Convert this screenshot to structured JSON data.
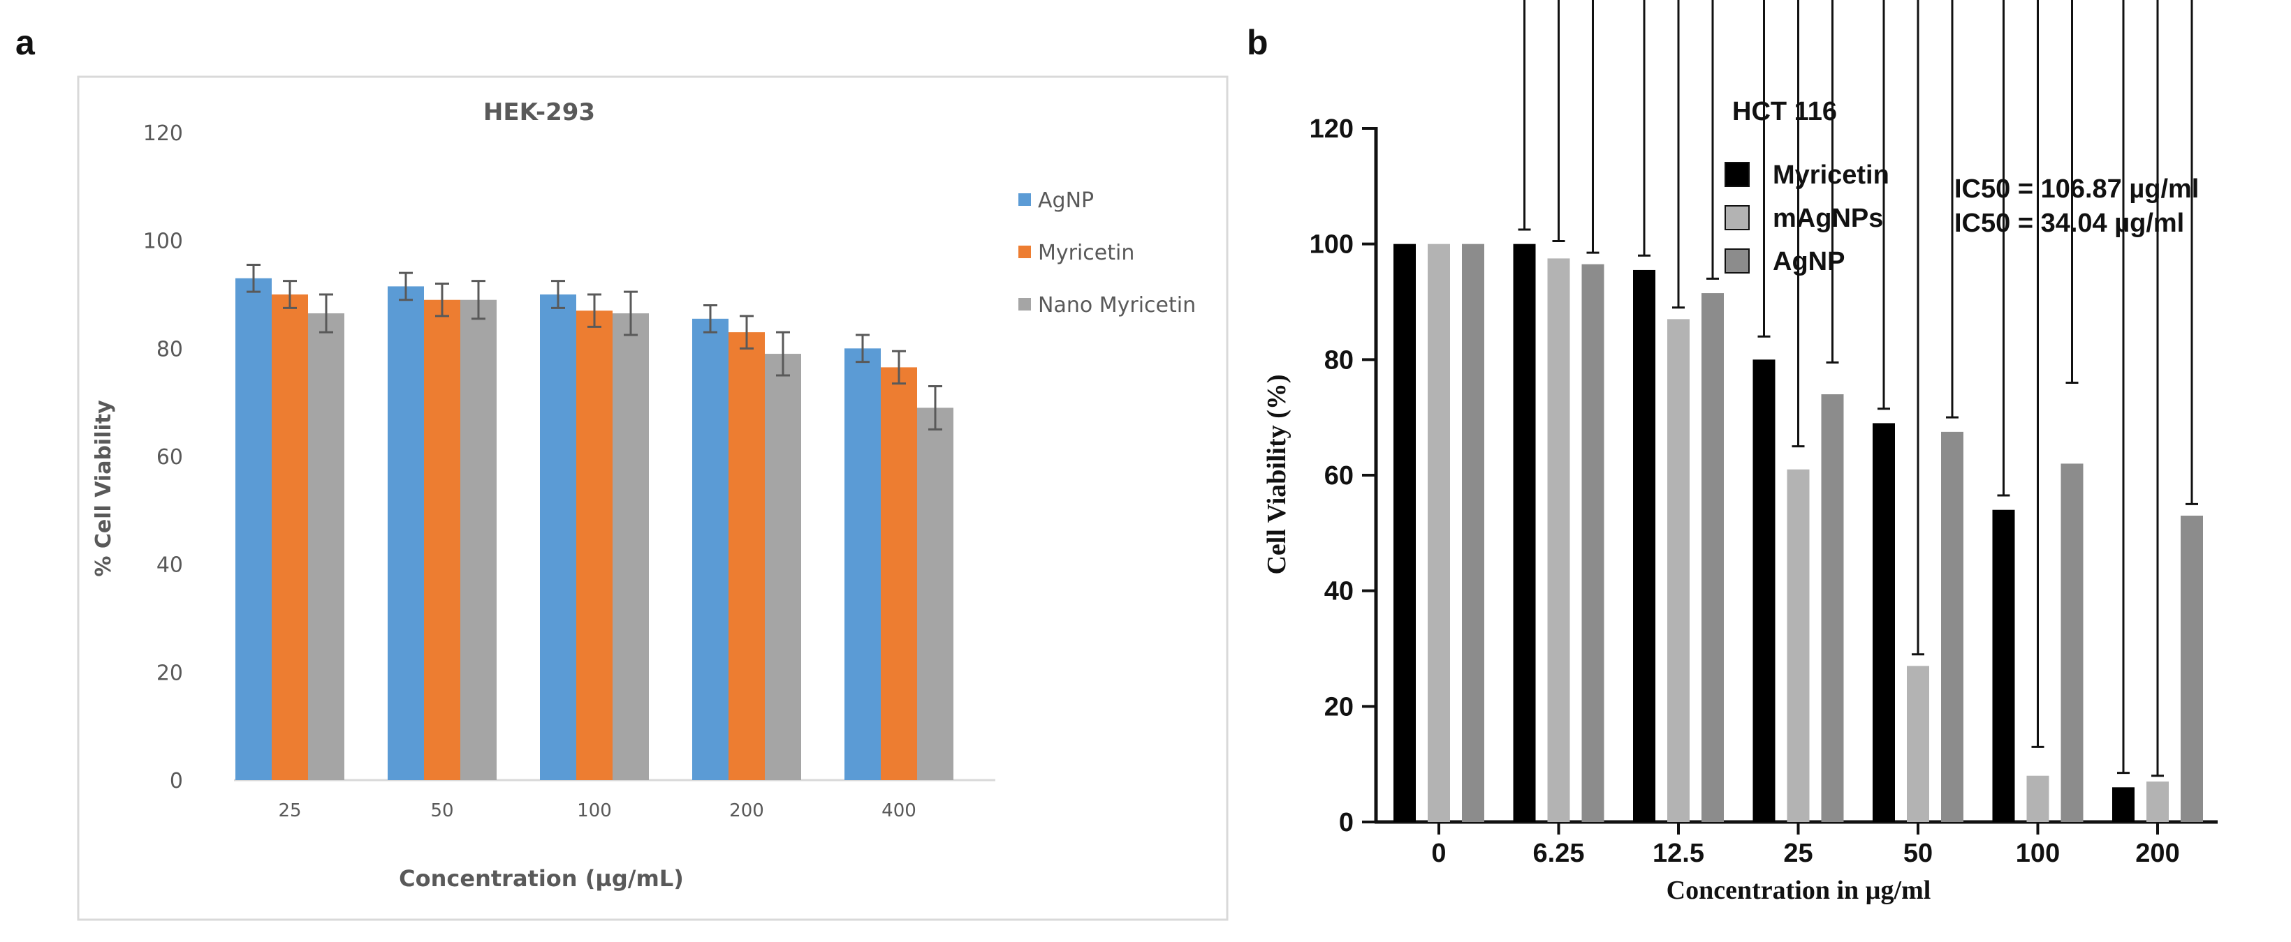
{
  "panel_a_letter": "a",
  "panel_b_letter": "b",
  "chart_data": [
    {
      "type": "bar",
      "panel": "a",
      "title": "HEK-293",
      "xlabel": "Concentration  (µg/mL)",
      "ylabel": "% Cell Viability",
      "ylim": [
        0,
        120
      ],
      "yticks": [
        "0",
        "20",
        "40",
        "60",
        "80",
        "100",
        "120"
      ],
      "grid": false,
      "legend_position": "right",
      "categories": [
        "25",
        "50",
        "100",
        "200",
        "400"
      ],
      "series": [
        {
          "name": "AgNP",
          "color": "#5b9bd5",
          "values": [
            93,
            91.5,
            90,
            85.5,
            80
          ],
          "errors": [
            2.5,
            2.5,
            2.5,
            2.5,
            2.5
          ]
        },
        {
          "name": "Myricetin",
          "color": "#ed7d31",
          "values": [
            90,
            89,
            87,
            83,
            76.5
          ],
          "errors": [
            2.5,
            3,
            3,
            3,
            3
          ]
        },
        {
          "name": "Nano Myricetin",
          "color": "#a5a5a5",
          "values": [
            86.5,
            89,
            86.5,
            79,
            69
          ],
          "errors": [
            3.5,
            3.5,
            4,
            4,
            4
          ]
        }
      ]
    },
    {
      "type": "bar",
      "panel": "b",
      "title": "HCT 116",
      "xlabel": "Concentration in µg/ml",
      "ylabel": "Cell Viability (%)",
      "ylim": [
        0,
        120
      ],
      "yticks": [
        "0",
        "20",
        "40",
        "60",
        "80",
        "100",
        "120"
      ],
      "grid": false,
      "legend_position": "top-right",
      "categories": [
        "0",
        "6.25",
        "12.5",
        "25",
        "50",
        "100",
        "200"
      ],
      "series": [
        {
          "name": "Myricetin",
          "color": "#000000",
          "values": [
            100,
            100,
            95.5,
            80,
            69,
            54,
            6
          ],
          "errors": [
            0,
            2.5,
            2.5,
            4,
            2.5,
            2.5,
            2.5
          ]
        },
        {
          "name": "mAgNPs",
          "color": "#b3b3b3",
          "values": [
            100,
            97.5,
            87,
            61,
            27,
            8,
            7
          ],
          "errors": [
            0,
            3,
            2,
            4,
            2,
            5,
            1
          ]
        },
        {
          "name": "AgNP",
          "color": "#8c8c8c",
          "values": [
            100,
            96.5,
            91.5,
            74,
            67.5,
            62,
            53
          ],
          "errors": [
            0,
            2,
            2.5,
            5.5,
            2.5,
            14,
            2
          ]
        }
      ],
      "annotations": [
        "IC50 = 106.87 µg/ml",
        "IC50 = 34.04 µg/ml"
      ]
    }
  ]
}
